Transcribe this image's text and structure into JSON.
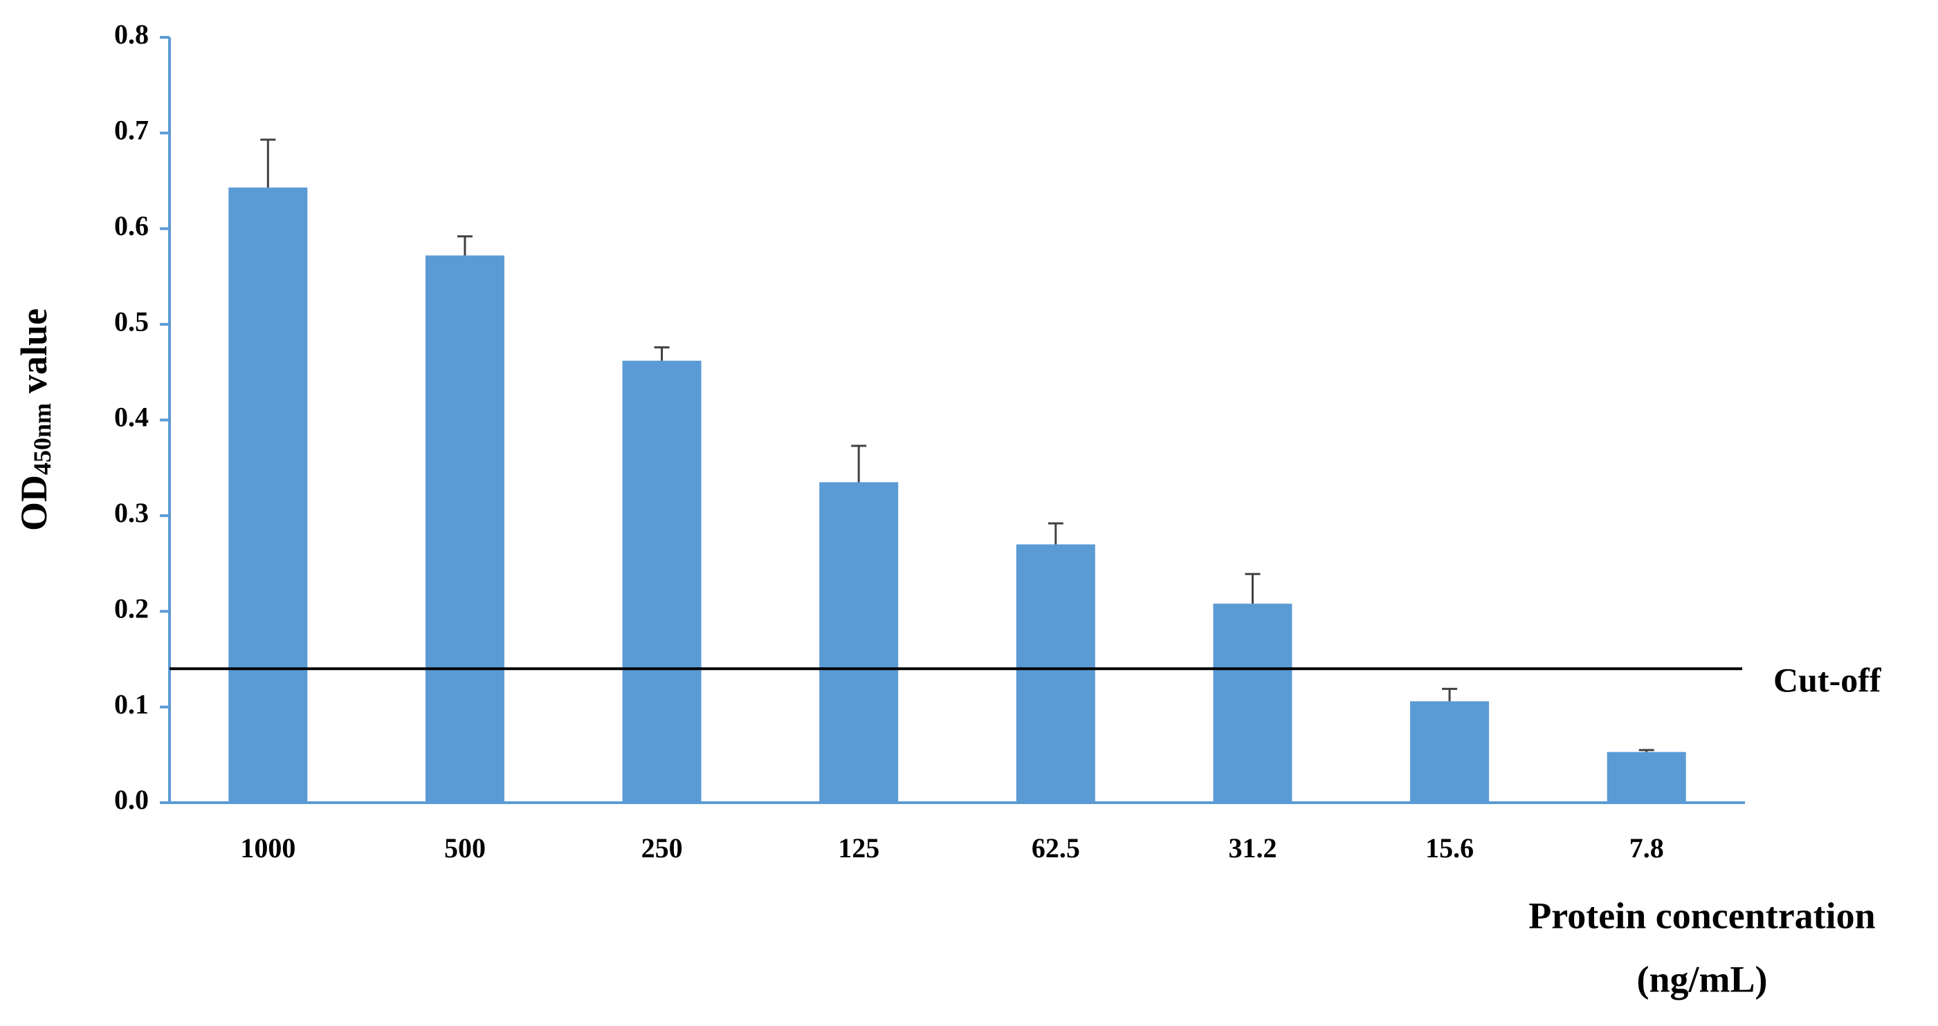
{
  "chart_data": {
    "type": "bar",
    "y_label": {
      "main": "OD",
      "sub": "450nm",
      "rest": "value"
    },
    "x_label": [
      "Protein concentration",
      "(ng/mL)"
    ],
    "categories": [
      "1000",
      "500",
      "250",
      "125",
      "62.5",
      "31.2",
      "15.6",
      "7.8"
    ],
    "values": [
      0.643,
      0.572,
      0.462,
      0.335,
      0.27,
      0.208,
      0.106,
      0.053
    ],
    "errors": [
      0.05,
      0.02,
      0.014,
      0.038,
      0.022,
      0.031,
      0.013,
      0.002
    ],
    "color": "#5b9bd5",
    "error_color": "#404040",
    "cutoff": {
      "value": 0.14,
      "label": "Cut-off",
      "color": "#000000"
    },
    "ylim": [
      0,
      0.8
    ],
    "yticks": [
      {
        "value": 0,
        "label": "0.0"
      },
      0.1,
      0.2,
      0.3,
      0.4,
      0.5,
      0.6,
      0.7,
      0.8
    ],
    "grid": false
  }
}
